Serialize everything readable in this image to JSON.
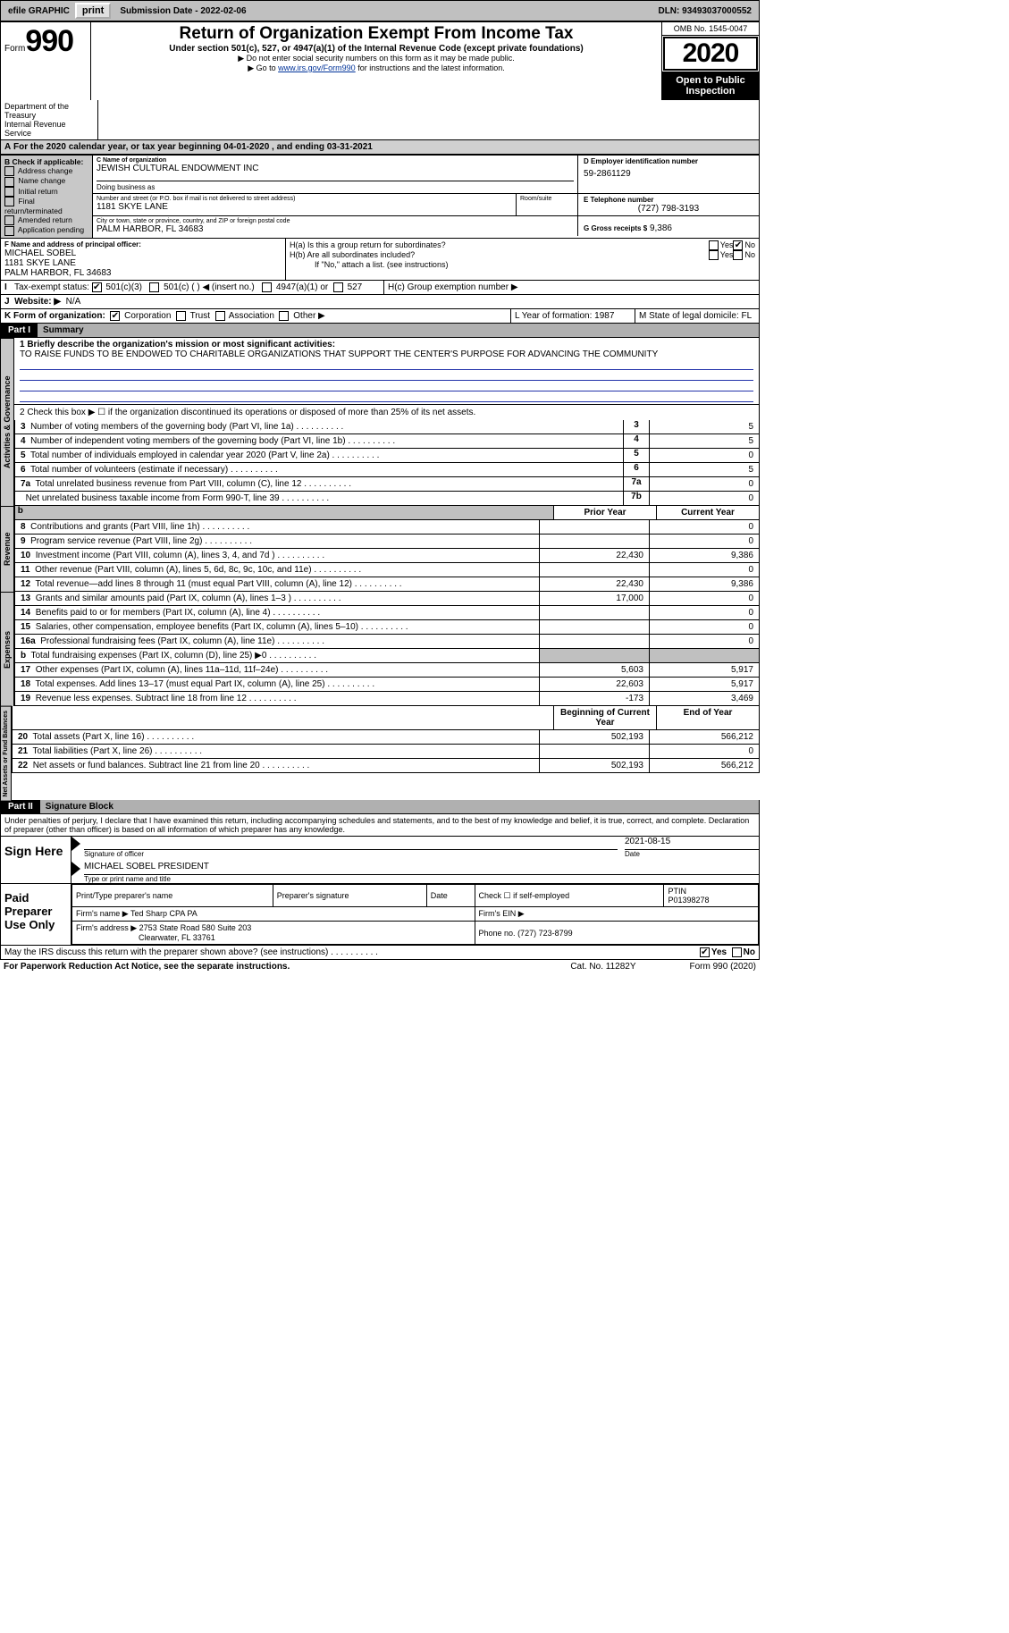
{
  "topbar": {
    "efile": "efile GRAPHIC",
    "print": "print",
    "subdate_label": "Submission Date - ",
    "subdate": "2022-02-06",
    "dln": "DLN: 93493037000552"
  },
  "hdr": {
    "form": "Form",
    "n": "990",
    "title": "Return of Organization Exempt From Income Tax",
    "sub": "Under section 501(c), 527, or 4947(a)(1) of the Internal Revenue Code (except private foundations)",
    "note1": "▶ Do not enter social security numbers on this form as it may be made public.",
    "note2_pre": "▶ Go to ",
    "note2_link": "www.irs.gov/Form990",
    "note2_post": " for instructions and the latest information.",
    "dept": "Department of the Treasury\nInternal Revenue Service",
    "omb": "OMB No. 1545-0047",
    "year": "2020",
    "open": "Open to Public Inspection"
  },
  "A": {
    "line": "For the 2020 calendar year, or tax year beginning 04-01-2020    , and ending 03-31-2021"
  },
  "B": {
    "label": "B Check if applicable:",
    "items": [
      "Address change",
      "Name change",
      "Initial return",
      "Final return/terminated",
      "Amended return",
      "Application pending"
    ]
  },
  "C": {
    "label": "C Name of organization",
    "name": "JEWISH CULTURAL ENDOWMENT INC",
    "dba": "Doing business as",
    "addr_lbl": "Number and street (or P.O. box if mail is not delivered to street address)",
    "room": "Room/suite",
    "addr": "1181 SKYE LANE",
    "city_lbl": "City or town, state or province, country, and ZIP or foreign postal code",
    "city": "PALM HARBOR, FL  34683"
  },
  "D": {
    "label": "D Employer identification number",
    "val": "59-2861129"
  },
  "E": {
    "label": "E Telephone number",
    "val": "(727) 798-3193"
  },
  "G": {
    "label": "G Gross receipts $",
    "val": "9,386"
  },
  "F": {
    "label": "F  Name and address of principal officer:",
    "name": "MICHAEL SOBEL",
    "addr1": "1181 SKYE LANE",
    "addr2": "PALM HARBOR, FL  34683"
  },
  "H": {
    "a_lbl": "H(a)  Is this a group return for subordinates?",
    "a_yes": "Yes",
    "a_no": "No",
    "b_lbl": "H(b)  Are all subordinates included?",
    "b_note": "If \"No,\" attach a list. (see instructions)",
    "c_lbl": "H(c)  Group exemption number ▶"
  },
  "I": {
    "lbl": "Tax-exempt status:",
    "o1": "501(c)(3)",
    "o2": "501(c) (  ) ◀ (insert no.)",
    "o3": "4947(a)(1) or",
    "o4": "527"
  },
  "J": {
    "lbl": "Website: ▶",
    "val": "N/A"
  },
  "K": {
    "lbl": "K Form of organization:",
    "o1": "Corporation",
    "o2": "Trust",
    "o3": "Association",
    "o4": "Other ▶"
  },
  "L": {
    "lbl": "L Year of formation: 1987"
  },
  "M": {
    "lbl": "M State of legal domicile: FL"
  },
  "p1": {
    "part": "Part I",
    "title": "Summary",
    "q1": "1  Briefly describe the organization's mission or most significant activities:",
    "mission": "TO RAISE FUNDS TO BE ENDOWED TO CHARITABLE ORGANIZATIONS THAT SUPPORT THE CENTER'S PURPOSE FOR ADVANCING THE COMMUNITY",
    "q2": "2  Check this box ▶ ☐  if the organization discontinued its operations or disposed of more than 25% of its net assets.",
    "rows": [
      {
        "n": "3",
        "t": "Number of voting members of the governing body (Part VI, line 1a)",
        "box": "3",
        "v": "5"
      },
      {
        "n": "4",
        "t": "Number of independent voting members of the governing body (Part VI, line 1b)",
        "box": "4",
        "v": "5"
      },
      {
        "n": "5",
        "t": "Total number of individuals employed in calendar year 2020 (Part V, line 2a)",
        "box": "5",
        "v": "0"
      },
      {
        "n": "6",
        "t": "Total number of volunteers (estimate if necessary)",
        "box": "6",
        "v": "5"
      },
      {
        "n": "7a",
        "t": "Total unrelated business revenue from Part VIII, column (C), line 12",
        "box": "7a",
        "v": "0"
      },
      {
        "n": "",
        "t": "Net unrelated business taxable income from Form 990-T, line 39",
        "box": "7b",
        "v": "0"
      }
    ],
    "prior": "Prior Year",
    "curr": "Current Year",
    "rev": [
      {
        "n": "8",
        "t": "Contributions and grants (Part VIII, line 1h)",
        "p": "",
        "c": "0"
      },
      {
        "n": "9",
        "t": "Program service revenue (Part VIII, line 2g)",
        "p": "",
        "c": "0"
      },
      {
        "n": "10",
        "t": "Investment income (Part VIII, column (A), lines 3, 4, and 7d )",
        "p": "22,430",
        "c": "9,386"
      },
      {
        "n": "11",
        "t": "Other revenue (Part VIII, column (A), lines 5, 6d, 8c, 9c, 10c, and 11e)",
        "p": "",
        "c": "0"
      },
      {
        "n": "12",
        "t": "Total revenue—add lines 8 through 11 (must equal Part VIII, column (A), line 12)",
        "p": "22,430",
        "c": "9,386"
      }
    ],
    "exp": [
      {
        "n": "13",
        "t": "Grants and similar amounts paid (Part IX, column (A), lines 1–3 )",
        "p": "17,000",
        "c": "0"
      },
      {
        "n": "14",
        "t": "Benefits paid to or for members (Part IX, column (A), line 4)",
        "p": "",
        "c": "0"
      },
      {
        "n": "15",
        "t": "Salaries, other compensation, employee benefits (Part IX, column (A), lines 5–10)",
        "p": "",
        "c": "0"
      },
      {
        "n": "16a",
        "t": "Professional fundraising fees (Part IX, column (A), line 11e)",
        "p": "",
        "c": "0"
      },
      {
        "n": "b",
        "t": "Total fundraising expenses (Part IX, column (D), line 25) ▶0",
        "p": "SHADE",
        "c": "SHADE"
      },
      {
        "n": "17",
        "t": "Other expenses (Part IX, column (A), lines 11a–11d, 11f–24e)",
        "p": "5,603",
        "c": "5,917"
      },
      {
        "n": "18",
        "t": "Total expenses. Add lines 13–17 (must equal Part IX, column (A), line 25)",
        "p": "22,603",
        "c": "5,917"
      },
      {
        "n": "19",
        "t": "Revenue less expenses. Subtract line 18 from line 12",
        "p": "-173",
        "c": "3,469"
      }
    ],
    "begin": "Beginning of Current Year",
    "end": "End of Year",
    "net": [
      {
        "n": "20",
        "t": "Total assets (Part X, line 16)",
        "p": "502,193",
        "c": "566,212"
      },
      {
        "n": "21",
        "t": "Total liabilities (Part X, line 26)",
        "p": "",
        "c": "0"
      },
      {
        "n": "22",
        "t": "Net assets or fund balances. Subtract line 21 from line 20",
        "p": "502,193",
        "c": "566,212"
      }
    ]
  },
  "p2": {
    "part": "Part II",
    "title": "Signature Block",
    "decl": "Under penalties of perjury, I declare that I have examined this return, including accompanying schedules and statements, and to the best of my knowledge and belief, it is true, correct, and complete. Declaration of preparer (other than officer) is based on all information of which preparer has any knowledge.",
    "sign": "Sign Here",
    "sig_of": "Signature of officer",
    "date": "Date",
    "date_v": "2021-08-15",
    "printed": "MICHAEL SOBEL PRESIDENT",
    "printed_lbl": "Type or print name and title",
    "paid": "Paid Preparer Use Only",
    "h1": "Print/Type preparer's name",
    "h2": "Preparer's signature",
    "h3": "Date",
    "h4": "Check ☐ if self-employed",
    "h5": "PTIN",
    "ptin": "P01398278",
    "firm_lbl": "Firm's name  ▶",
    "firm": "Ted Sharp CPA PA",
    "ein_lbl": "Firm's EIN ▶",
    "addr_lbl": "Firm's address ▶",
    "addr": "2753 State Road 580 Suite 203",
    "city": "Clearwater, FL  33761",
    "phone_lbl": "Phone no.",
    "phone": "(727) 723-8799",
    "irs_q": "May the IRS discuss this return with the preparer shown above? (see instructions)",
    "yes": "Yes",
    "no": "No"
  },
  "foot": {
    "l": "For Paperwork Reduction Act Notice, see the separate instructions.",
    "m": "Cat. No. 11282Y",
    "r": "Form 990 (2020)"
  }
}
